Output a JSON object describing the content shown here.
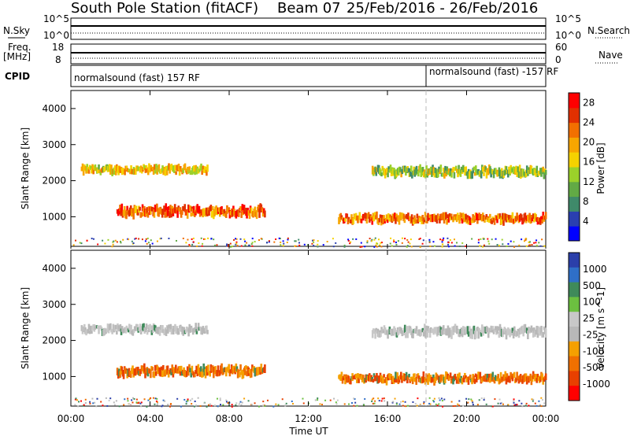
{
  "header": {
    "station": "South Pole Station (fitACF)",
    "beam": "Beam 07",
    "dates": "25/Feb/2016 - 26/Feb/2016"
  },
  "strips": {
    "nsky": {
      "label": "N.Sky",
      "ticks": [
        "10^5",
        "10^0"
      ]
    },
    "nsearch": {
      "label": "N.Search",
      "ticks": [
        "10^5",
        "10^0"
      ]
    },
    "freq": {
      "label_line1": "Freq.",
      "label_line2": "[MHz]",
      "ticks": [
        "18",
        "8"
      ]
    },
    "nave": {
      "label": "Nave",
      "ticks": [
        "60",
        "0"
      ]
    },
    "cpid": {
      "label": "CPID",
      "program1": "normalsound (fast) 157 RF",
      "program2": "normalsound (fast) -157 RF"
    }
  },
  "colors": {
    "power_scale": [
      "#0000ff",
      "#2a3fb0",
      "#3f8a6a",
      "#62aa45",
      "#9bd12a",
      "#f5d200",
      "#f7a600",
      "#f27000",
      "#e23000",
      "#ff0000"
    ],
    "velocity_scale": [
      "#2b3faa",
      "#2f6fc8",
      "#3f8a5a",
      "#6cc040",
      "#c8c8c8",
      "#b8b8b8",
      "#f5a000",
      "#f07000",
      "#e84000",
      "#ff0000"
    ]
  },
  "chart_data": [
    {
      "type": "heatmap",
      "title": "",
      "ylabel": "Slant Range [km]",
      "y_ticks": [
        "1000",
        "2000",
        "3000",
        "4000"
      ],
      "colorbar_label": "Power [dB]",
      "colorbar_ticks": [
        "4",
        "8",
        "12",
        "16",
        "20",
        "24",
        "28"
      ],
      "ylim": [
        180,
        4500
      ],
      "clim": [
        0,
        30
      ],
      "bands": [
        {
          "name": "upper",
          "t0": 0.5,
          "t1": 6.9,
          "r": 2300,
          "w": 220,
          "v": 16
        },
        {
          "name": "lower",
          "t0": 2.3,
          "t1": 9.8,
          "r": 1150,
          "w": 260,
          "v": 22
        },
        {
          "name": "upper2",
          "t0": 15.2,
          "t1": 24,
          "r": 2250,
          "w": 250,
          "v": 12
        },
        {
          "name": "lower2",
          "t0": 13.5,
          "t1": 24,
          "r": 950,
          "w": 230,
          "v": 21
        }
      ]
    },
    {
      "type": "heatmap",
      "title": "",
      "ylabel": "Slant Range [km]",
      "y_ticks": [
        "1000",
        "2000",
        "3000",
        "4000"
      ],
      "colorbar_label": "Velocity [m s^-1]",
      "colorbar_ticks": [
        "1000",
        "500",
        "100",
        "25",
        "-25",
        "-100",
        "-500",
        "-1000"
      ],
      "ylim": [
        180,
        4500
      ],
      "clim": [
        -1000,
        1000
      ],
      "bands": [
        {
          "name": "upper",
          "t0": 0.5,
          "t1": 6.9,
          "r": 2300,
          "w": 220,
          "v": 0
        },
        {
          "name": "lower",
          "t0": 2.3,
          "t1": 9.8,
          "r": 1150,
          "w": 260,
          "v": -400
        },
        {
          "name": "upper2",
          "t0": 15.2,
          "t1": 24,
          "r": 2250,
          "w": 250,
          "v": 0
        },
        {
          "name": "lower2",
          "t0": 13.5,
          "t1": 24,
          "r": 950,
          "w": 230,
          "v": -300
        }
      ]
    }
  ],
  "xaxis": {
    "label": "Time UT",
    "ticks": [
      "00:00",
      "04:00",
      "08:00",
      "12:00",
      "16:00",
      "20:00",
      "00:00"
    ]
  }
}
